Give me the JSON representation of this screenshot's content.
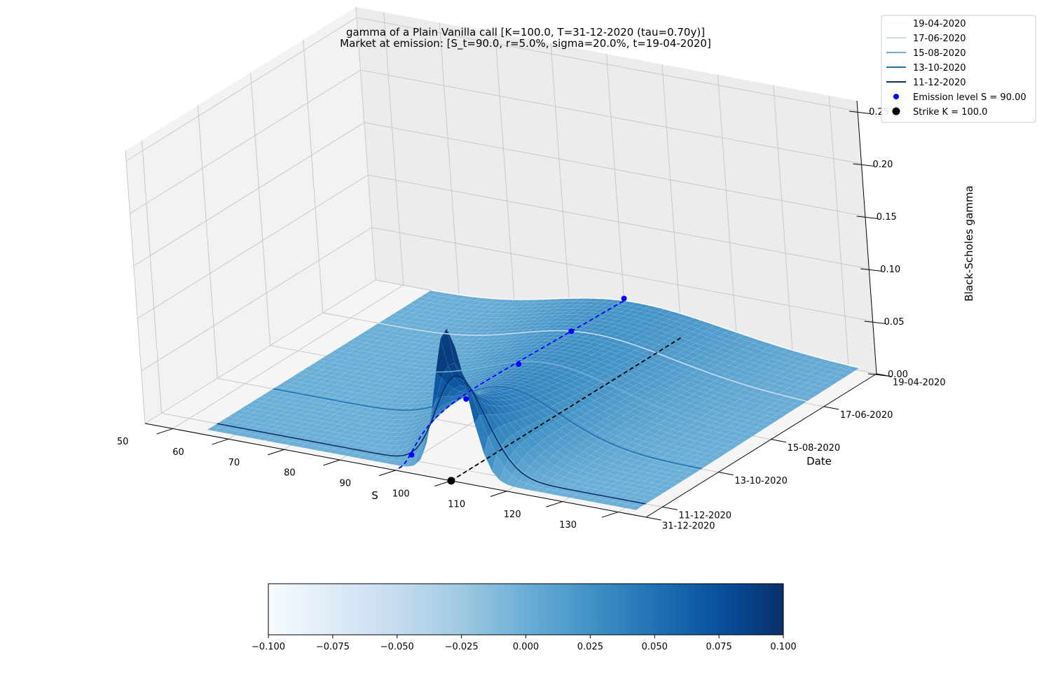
{
  "chart_data": [
    {
      "type": "surface",
      "title": "gamma of a Plain Vanilla call [K=100.0, T=31-12-2020 (tau=0.70y)]",
      "subtitle": "Market at emission: [S_t=90.0, r=5.0%, sigma=20.0%, t=19-04-2020]",
      "xlabel": "S",
      "ylabel": "Date",
      "zlabel": "Black-Scholes gamma",
      "x_ticks": [
        "50",
        "60",
        "70",
        "80",
        "90",
        "100",
        "110",
        "120",
        "130"
      ],
      "y_ticks": [
        "19-04-2020",
        "17-06-2020",
        "15-08-2020",
        "13-10-2020",
        "11-12-2020",
        "31-12-2020"
      ],
      "z_ticks": [
        "0.00",
        "0.05",
        "0.10",
        "0.15",
        "0.20",
        "0.25"
      ],
      "xlim": [
        45,
        135
      ],
      "zlim": [
        0,
        0.26
      ],
      "parameters": {
        "K": 100.0,
        "S_t": 90.0,
        "r": 0.05,
        "sigma": 0.2,
        "tau": 0.7
      },
      "colormap": "Blues",
      "grid": true,
      "series": [
        {
          "name": "19-04-2020",
          "tau": 0.7,
          "color": "#f7fbff"
        },
        {
          "name": "17-06-2020",
          "tau": 0.54,
          "color": "#c6dbef"
        },
        {
          "name": "15-08-2020",
          "tau": 0.38,
          "color": "#6baed6"
        },
        {
          "name": "13-10-2020",
          "tau": 0.22,
          "color": "#2171b5"
        },
        {
          "name": "11-12-2020",
          "tau": 0.05,
          "color": "#08306b"
        }
      ],
      "emission_points": [
        {
          "date": "19-04-2020",
          "S": 90,
          "gamma": 0.027
        },
        {
          "date": "17-06-2020",
          "S": 90,
          "gamma": 0.027
        },
        {
          "date": "15-08-2020",
          "S": 90,
          "gamma": 0.027
        },
        {
          "date": "13-10-2020",
          "S": 90,
          "gamma": 0.025
        },
        {
          "date": "11-12-2020",
          "S": 90,
          "gamma": 0.005
        }
      ],
      "strike_point": {
        "S": 100.0,
        "date": "31-12-2020",
        "gamma": 0
      },
      "legend": {
        "position": "top-right",
        "entries": [
          "19-04-2020",
          "17-06-2020",
          "15-08-2020",
          "13-10-2020",
          "11-12-2020"
        ],
        "emission_label": "Emission level S = 90.00",
        "strike_label": "Strike K = 100.0",
        "emission_color": "#0000ff",
        "strike_color": "#000000"
      }
    },
    {
      "type": "colorbar",
      "colormap": "Blues",
      "ticks": [
        "−0.100",
        "−0.075",
        "−0.050",
        "−0.025",
        "0.000",
        "0.025",
        "0.050",
        "0.075",
        "0.100"
      ],
      "range": [
        -0.1,
        0.1
      ]
    }
  ]
}
